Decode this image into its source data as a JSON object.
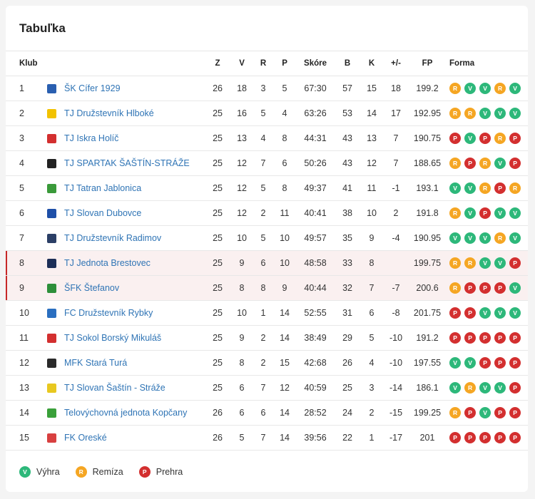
{
  "title": "Tabuľka",
  "headers": {
    "klub": "Klub",
    "z": "Z",
    "v": "V",
    "r": "R",
    "p": "P",
    "skore": "Skóre",
    "b": "B",
    "k": "K",
    "diff": "+/-",
    "fp": "FP",
    "forma": "Forma"
  },
  "rows": [
    {
      "pos": "1",
      "team": "ŠK Cífer 1929",
      "z": "26",
      "v": "18",
      "r": "3",
      "p": "5",
      "skore": "67:30",
      "b": "57",
      "k": "15",
      "diff": "18",
      "fp": "199.2",
      "forma": [
        "R",
        "V",
        "V",
        "R",
        "V"
      ],
      "logo": "#2a5fb0",
      "hl": false
    },
    {
      "pos": "2",
      "team": "TJ Družstevník Hlboké",
      "z": "25",
      "v": "16",
      "r": "5",
      "p": "4",
      "skore": "63:26",
      "b": "53",
      "k": "14",
      "diff": "17",
      "fp": "192.95",
      "forma": [
        "R",
        "R",
        "V",
        "V",
        "V"
      ],
      "logo": "#f2c200",
      "hl": false
    },
    {
      "pos": "3",
      "team": "TJ Iskra Holíč",
      "z": "25",
      "v": "13",
      "r": "4",
      "p": "8",
      "skore": "44:31",
      "b": "43",
      "k": "13",
      "diff": "7",
      "fp": "190.75",
      "forma": [
        "P",
        "V",
        "P",
        "R",
        "P"
      ],
      "logo": "#d32f2f",
      "hl": false
    },
    {
      "pos": "4",
      "team": "TJ SPARTAK ŠAŠTÍN-STRÁŽE",
      "z": "25",
      "v": "12",
      "r": "7",
      "p": "6",
      "skore": "50:26",
      "b": "43",
      "k": "12",
      "diff": "7",
      "fp": "188.65",
      "forma": [
        "R",
        "P",
        "R",
        "V",
        "P"
      ],
      "logo": "#222222",
      "hl": false
    },
    {
      "pos": "5",
      "team": "TJ Tatran Jablonica",
      "z": "25",
      "v": "12",
      "r": "5",
      "p": "8",
      "skore": "49:37",
      "b": "41",
      "k": "11",
      "diff": "-1",
      "fp": "193.1",
      "forma": [
        "V",
        "V",
        "R",
        "P",
        "R"
      ],
      "logo": "#3a9a3a",
      "hl": false
    },
    {
      "pos": "6",
      "team": "TJ Slovan Dubovce",
      "z": "25",
      "v": "12",
      "r": "2",
      "p": "11",
      "skore": "40:41",
      "b": "38",
      "k": "10",
      "diff": "2",
      "fp": "191.8",
      "forma": [
        "R",
        "V",
        "P",
        "V",
        "V"
      ],
      "logo": "#1e4fa8",
      "hl": false
    },
    {
      "pos": "7",
      "team": "TJ Družstevník Radimov",
      "z": "25",
      "v": "10",
      "r": "5",
      "p": "10",
      "skore": "49:57",
      "b": "35",
      "k": "9",
      "diff": "-4",
      "fp": "190.95",
      "forma": [
        "V",
        "V",
        "V",
        "R",
        "V"
      ],
      "logo": "#2b3f66",
      "hl": false
    },
    {
      "pos": "8",
      "team": "TJ Jednota Brestovec",
      "z": "25",
      "v": "9",
      "r": "6",
      "p": "10",
      "skore": "48:58",
      "b": "33",
      "k": "8",
      "diff": "",
      "fp": "199.75",
      "forma": [
        "R",
        "R",
        "V",
        "V",
        "P"
      ],
      "logo": "#1c2e57",
      "hl": true
    },
    {
      "pos": "9",
      "team": "ŠFK Štefanov",
      "z": "25",
      "v": "8",
      "r": "8",
      "p": "9",
      "skore": "40:44",
      "b": "32",
      "k": "7",
      "diff": "-7",
      "fp": "200.6",
      "forma": [
        "R",
        "P",
        "P",
        "P",
        "V"
      ],
      "logo": "#2d8f3a",
      "hl": true
    },
    {
      "pos": "10",
      "team": "FC Družstevník Rybky",
      "z": "25",
      "v": "10",
      "r": "1",
      "p": "14",
      "skore": "52:55",
      "b": "31",
      "k": "6",
      "diff": "-8",
      "fp": "201.75",
      "forma": [
        "P",
        "P",
        "V",
        "V",
        "V"
      ],
      "logo": "#2a6fc0",
      "hl": false
    },
    {
      "pos": "11",
      "team": "TJ Sokol Borský Mikuláš",
      "z": "25",
      "v": "9",
      "r": "2",
      "p": "14",
      "skore": "38:49",
      "b": "29",
      "k": "5",
      "diff": "-10",
      "fp": "191.2",
      "forma": [
        "P",
        "P",
        "P",
        "P",
        "P"
      ],
      "logo": "#d32f2f",
      "hl": false
    },
    {
      "pos": "12",
      "team": "MFK Stará Turá",
      "z": "25",
      "v": "8",
      "r": "2",
      "p": "15",
      "skore": "42:68",
      "b": "26",
      "k": "4",
      "diff": "-10",
      "fp": "197.55",
      "forma": [
        "V",
        "V",
        "P",
        "P",
        "P"
      ],
      "logo": "#2a2a2a",
      "hl": false
    },
    {
      "pos": "13",
      "team": "TJ Slovan Šaštín - Stráže",
      "z": "25",
      "v": "6",
      "r": "7",
      "p": "12",
      "skore": "40:59",
      "b": "25",
      "k": "3",
      "diff": "-14",
      "fp": "186.1",
      "forma": [
        "V",
        "R",
        "V",
        "V",
        "P"
      ],
      "logo": "#e8c820",
      "hl": false
    },
    {
      "pos": "14",
      "team": "Telovýchovná jednota Kopčany",
      "z": "26",
      "v": "6",
      "r": "6",
      "p": "14",
      "skore": "28:52",
      "b": "24",
      "k": "2",
      "diff": "-15",
      "fp": "199.25",
      "forma": [
        "R",
        "P",
        "V",
        "P",
        "P"
      ],
      "logo": "#3aa03a",
      "hl": false
    },
    {
      "pos": "15",
      "team": "FK Oreské",
      "z": "26",
      "v": "5",
      "r": "7",
      "p": "14",
      "skore": "39:56",
      "b": "22",
      "k": "1",
      "diff": "-17",
      "fp": "201",
      "forma": [
        "P",
        "P",
        "P",
        "P",
        "P"
      ],
      "logo": "#d84040",
      "hl": false
    }
  ],
  "legend": [
    {
      "code": "V",
      "label": "Výhra"
    },
    {
      "code": "R",
      "label": "Remíza"
    },
    {
      "code": "P",
      "label": "Prehra"
    }
  ],
  "colors": {
    "V": "#2db87a",
    "R": "#f5a623",
    "P": "#d32f2f",
    "link": "#2f74b5",
    "highlight_border": "#c62828"
  }
}
